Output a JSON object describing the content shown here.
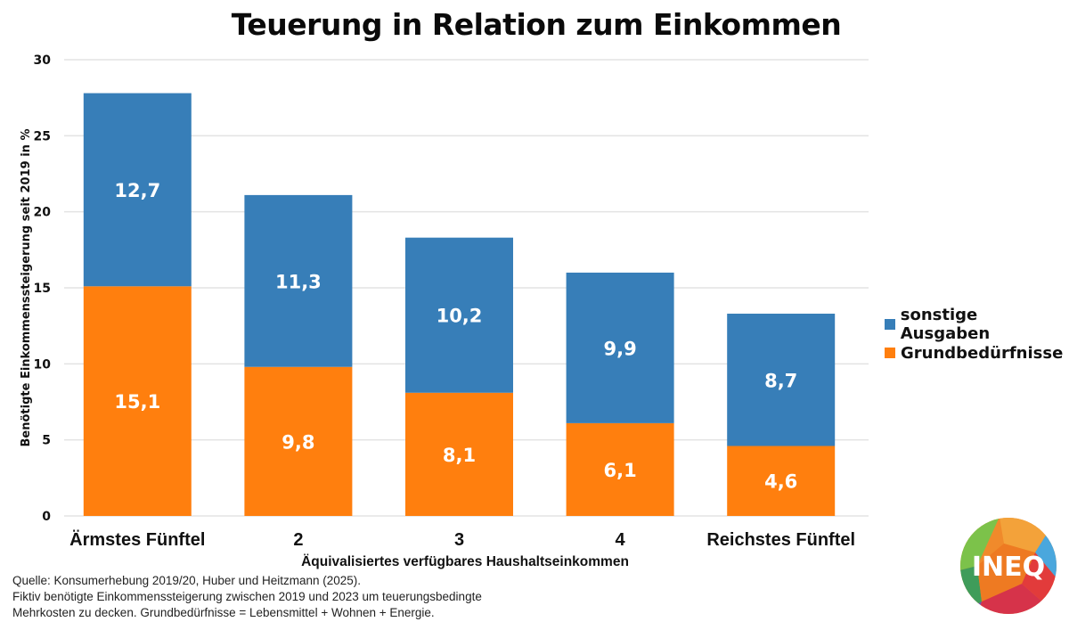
{
  "chart_data": {
    "type": "bar",
    "stacked": true,
    "title": "Teuerung in Relation zum Einkommen",
    "xlabel": "Äquivalisiertes verfügbares Haushaltseinkommen",
    "ylabel": "Benötigte Einkommenssteigerung seit 2019 in %",
    "ylim": [
      0,
      30
    ],
    "yticks": [
      0,
      5,
      10,
      15,
      20,
      25,
      30
    ],
    "grid": true,
    "legend_position": "right",
    "categories": [
      "Ärmstes Fünftel",
      "2",
      "3",
      "4",
      "Reichstes Fünftel"
    ],
    "series": [
      {
        "name": "Grundbedürfnisse",
        "color": "#ff7f0e",
        "values": [
          15.1,
          9.8,
          8.1,
          6.1,
          4.6
        ],
        "labels": [
          "15,1",
          "9,8",
          "8,1",
          "6,1",
          "4,6"
        ]
      },
      {
        "name": "sonstige Ausgaben",
        "color": "#377eb8",
        "values": [
          12.7,
          11.3,
          10.2,
          9.9,
          8.7
        ],
        "labels": [
          "12,7",
          "11,3",
          "10,2",
          "9,9",
          "8,7"
        ]
      }
    ],
    "legend_order": [
      "sonstige Ausgaben",
      "Grundbedürfnisse"
    ]
  },
  "legend": [
    {
      "label": "sonstige Ausgaben",
      "color": "#377eb8"
    },
    {
      "label": "Grundbedürfnisse",
      "color": "#ff7f0e"
    }
  ],
  "source_lines": [
    "Quelle: Konsumerhebung 2019/20, Huber und Heitzmann (2025).",
    "Fiktiv benötigte Einkommenssteigerung zwischen 2019 und 2023 um teuerungsbedingte",
    "Mehrkosten zu decken. Grundbedürfnisse = Lebensmittel + Wohnen + Energie."
  ],
  "logo": {
    "text": "INEQ"
  }
}
